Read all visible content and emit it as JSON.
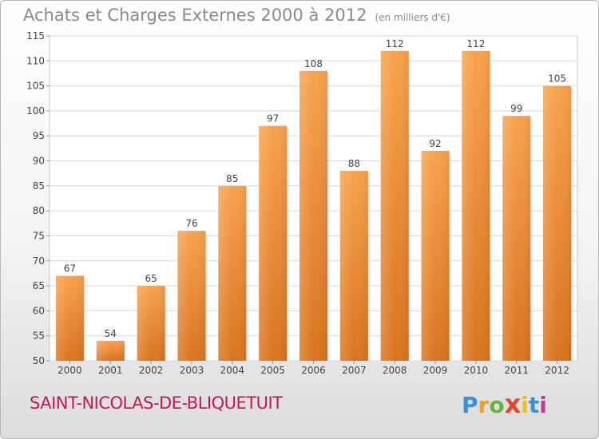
{
  "header": {
    "title": "Achats et Charges Externes 2000 à 2012",
    "unit": "(en milliers d'€)"
  },
  "footer": {
    "city": "SAINT-NICOLAS-DE-BLIQUETUIT",
    "logo": {
      "letters": [
        "P",
        "r",
        "o",
        "x",
        "i",
        "t",
        "i"
      ],
      "colors": [
        "#3a8fd6",
        "#f0a020",
        "#6ab33f",
        "#e04a2a",
        "#f0c020",
        "#3a8fd6",
        "#c43a8e"
      ]
    }
  },
  "colors": {
    "bar_top": "#f7a24d",
    "bar_bottom": "#d9741f",
    "label": "#444444",
    "grid": "#d8d8d8"
  },
  "chart_data": {
    "type": "bar",
    "categories": [
      "2000",
      "2001",
      "2002",
      "2003",
      "2004",
      "2005",
      "2006",
      "2007",
      "2008",
      "2009",
      "2010",
      "2011",
      "2012"
    ],
    "values": [
      67,
      54,
      65,
      76,
      85,
      97,
      108,
      88,
      112,
      92,
      112,
      99,
      105
    ],
    "title": "Achats et Charges Externes 2000 à 2012",
    "subtitle": "(en milliers d'€)",
    "xlabel": "",
    "ylabel": "",
    "ylim": [
      50,
      115
    ],
    "yticks": [
      50,
      55,
      60,
      65,
      70,
      75,
      80,
      85,
      90,
      95,
      100,
      105,
      110,
      115
    ],
    "grid": true,
    "legend": "none"
  }
}
